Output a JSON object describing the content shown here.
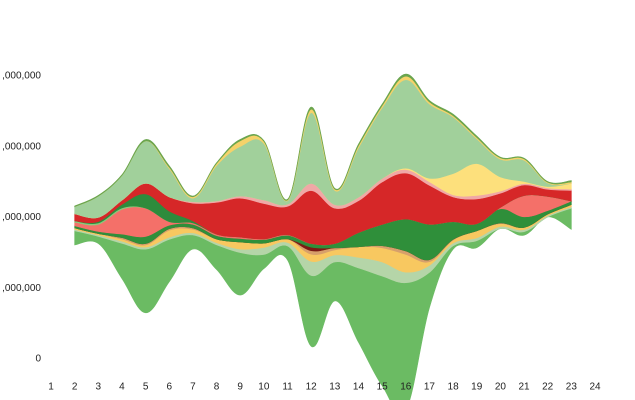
{
  "chart_data": {
    "type": "area",
    "subtype": "streamgraph",
    "title": "",
    "xlabel": "",
    "ylabel": "",
    "x": [
      1,
      2,
      3,
      4,
      5,
      6,
      7,
      8,
      9,
      10,
      11,
      12,
      13,
      14,
      15,
      16,
      17,
      18,
      19,
      20,
      21,
      22,
      23,
      24
    ],
    "x_tick_labels": [
      "1",
      "2",
      "3",
      "4",
      "5",
      "6",
      "7",
      "8",
      "9",
      "10",
      "11",
      "12",
      "13",
      "14",
      "15",
      "16",
      "17",
      "18",
      "19",
      "20",
      "21",
      "22",
      "23",
      "24"
    ],
    "y_tick_labels": [
      "0",
      ",000,000",
      ",000,000",
      ",000,000",
      ",000,000"
    ],
    "y_tick_values": [
      0,
      1,
      2,
      3,
      4
    ],
    "ylim": [
      0,
      4
    ],
    "grid": false,
    "legend": "none",
    "baseline": "wiggle",
    "series": [
      {
        "color": "#6bbb63",
        "values": [
          null,
          0.2,
          0.1,
          0.5,
          0.9,
          0.6,
          0.2,
          0.35,
          0.6,
          0.2,
          0.2,
          1.0,
          0.55,
          1.05,
          1.55,
          1.8,
          0.5,
          0.05,
          0.1,
          0.0,
          0.05,
          0.0,
          0.3,
          null
        ]
      },
      {
        "color": "#b5d5a8",
        "values": [
          null,
          0.02,
          0.02,
          0.03,
          0.03,
          0.03,
          0.03,
          0.03,
          0.05,
          0.1,
          0.05,
          0.2,
          0.1,
          0.15,
          0.2,
          0.15,
          0.1,
          0.04,
          0.04,
          0.03,
          0.03,
          0.02,
          0.02,
          null
        ]
      },
      {
        "color": "#f8c860",
        "values": [
          null,
          0.02,
          0.02,
          0.03,
          0.03,
          0.1,
          0.05,
          0.05,
          0.1,
          0.06,
          0.05,
          0.1,
          0.07,
          0.15,
          0.2,
          0.25,
          0.05,
          0.04,
          0.1,
          0.04,
          0.03,
          0.02,
          0.03,
          null
        ]
      },
      {
        "color": "#d7a06b",
        "values": [
          null,
          0.0,
          0.0,
          0.02,
          0.02,
          0.02,
          0.02,
          0.0,
          0.0,
          0.0,
          0.0,
          0.05,
          0.03,
          0.0,
          0.03,
          0.05,
          0.03,
          0.01,
          0.0,
          0.01,
          0.0,
          0.0,
          0.0,
          null
        ]
      },
      {
        "color": "#7b1b14",
        "values": [
          null,
          0.0,
          0.0,
          0.0,
          0.0,
          0.0,
          0.0,
          0.0,
          0.0,
          0.0,
          0.0,
          0.05,
          0.0,
          0.0,
          0.0,
          0.0,
          0.0,
          0.0,
          0.0,
          0.0,
          0.0,
          0.0,
          0.0,
          null
        ]
      },
      {
        "color": "#2f8f3a",
        "values": [
          null,
          0.03,
          0.03,
          0.05,
          0.1,
          0.05,
          0.05,
          0.05,
          0.05,
          0.05,
          0.05,
          0.05,
          0.06,
          0.2,
          0.3,
          0.45,
          0.5,
          0.25,
          0.1,
          0.2,
          0.15,
          0.05,
          0.05,
          null
        ]
      },
      {
        "color": "#f47069",
        "values": [
          null,
          0.05,
          0.1,
          0.35,
          0.4,
          0.05,
          0.02,
          0.02,
          0.02,
          0.01,
          0.01,
          0.0,
          0.0,
          0.0,
          0.0,
          0.0,
          0.0,
          0.0,
          0.0,
          0.02,
          0.3,
          0.2,
          0.0,
          null
        ]
      },
      {
        "color": "#8cc97c",
        "values": [
          null,
          0.02,
          0.02,
          0.02,
          0.0,
          0.0,
          0.0,
          0.0,
          0.0,
          0.0,
          0.0,
          0.0,
          0.0,
          0.0,
          0.0,
          0.0,
          0.0,
          0.0,
          0.0,
          0.0,
          0.0,
          0.0,
          0.0,
          null
        ]
      },
      {
        "color": "#2e8b3c",
        "values": [
          null,
          0.0,
          0.02,
          0.05,
          0.2,
          0.15,
          0.03,
          0.0,
          0.0,
          0.0,
          0.0,
          0.0,
          0.0,
          0.0,
          0.0,
          0.0,
          0.0,
          0.0,
          0.0,
          0.0,
          0.0,
          0.0,
          0.0,
          null
        ]
      },
      {
        "color": "#d62728",
        "values": [
          null,
          0.1,
          0.06,
          0.06,
          0.15,
          0.2,
          0.25,
          0.45,
          0.55,
          0.5,
          0.4,
          0.75,
          0.5,
          0.45,
          0.6,
          0.65,
          0.55,
          0.35,
          0.35,
          0.2,
          0.15,
          0.1,
          0.15,
          null
        ]
      },
      {
        "color": "#f0a8a6",
        "values": [
          null,
          0.0,
          0.0,
          0.0,
          0.0,
          0.0,
          0.02,
          0.02,
          0.03,
          0.05,
          0.03,
          0.1,
          0.05,
          0.05,
          0.05,
          0.05,
          0.05,
          0.03,
          0.05,
          0.03,
          0.02,
          0.02,
          0.02,
          null
        ]
      },
      {
        "color": "#fde07c",
        "values": [
          null,
          0.0,
          0.0,
          0.0,
          0.0,
          0.0,
          0.0,
          0.0,
          0.0,
          0.0,
          0.0,
          0.0,
          0.0,
          0.0,
          0.0,
          0.02,
          0.05,
          0.3,
          0.45,
          0.2,
          0.03,
          0.02,
          0.08,
          null
        ]
      },
      {
        "color": "#a1d09b",
        "values": [
          null,
          0.1,
          0.3,
          0.35,
          0.6,
          0.4,
          0.05,
          0.5,
          0.7,
          0.8,
          0.05,
          1.0,
          0.2,
          0.7,
          1.0,
          1.25,
          1.05,
          0.8,
          0.35,
          0.25,
          0.3,
          0.05,
          0.0,
          null
        ]
      },
      {
        "color": "#f5d26a",
        "values": [
          null,
          0.0,
          0.0,
          0.0,
          0.0,
          0.02,
          0.02,
          0.03,
          0.08,
          0.03,
          0.01,
          0.05,
          0.02,
          0.03,
          0.03,
          0.05,
          0.03,
          0.02,
          0.02,
          0.02,
          0.02,
          0.01,
          0.02,
          null
        ]
      },
      {
        "color": "#6aa54e",
        "values": [
          null,
          0.01,
          0.01,
          0.01,
          0.02,
          0.02,
          0.01,
          0.01,
          0.02,
          0.01,
          0.01,
          0.03,
          0.01,
          0.02,
          0.02,
          0.03,
          0.02,
          0.02,
          0.02,
          0.01,
          0.01,
          0.01,
          0.02,
          null
        ]
      }
    ]
  }
}
